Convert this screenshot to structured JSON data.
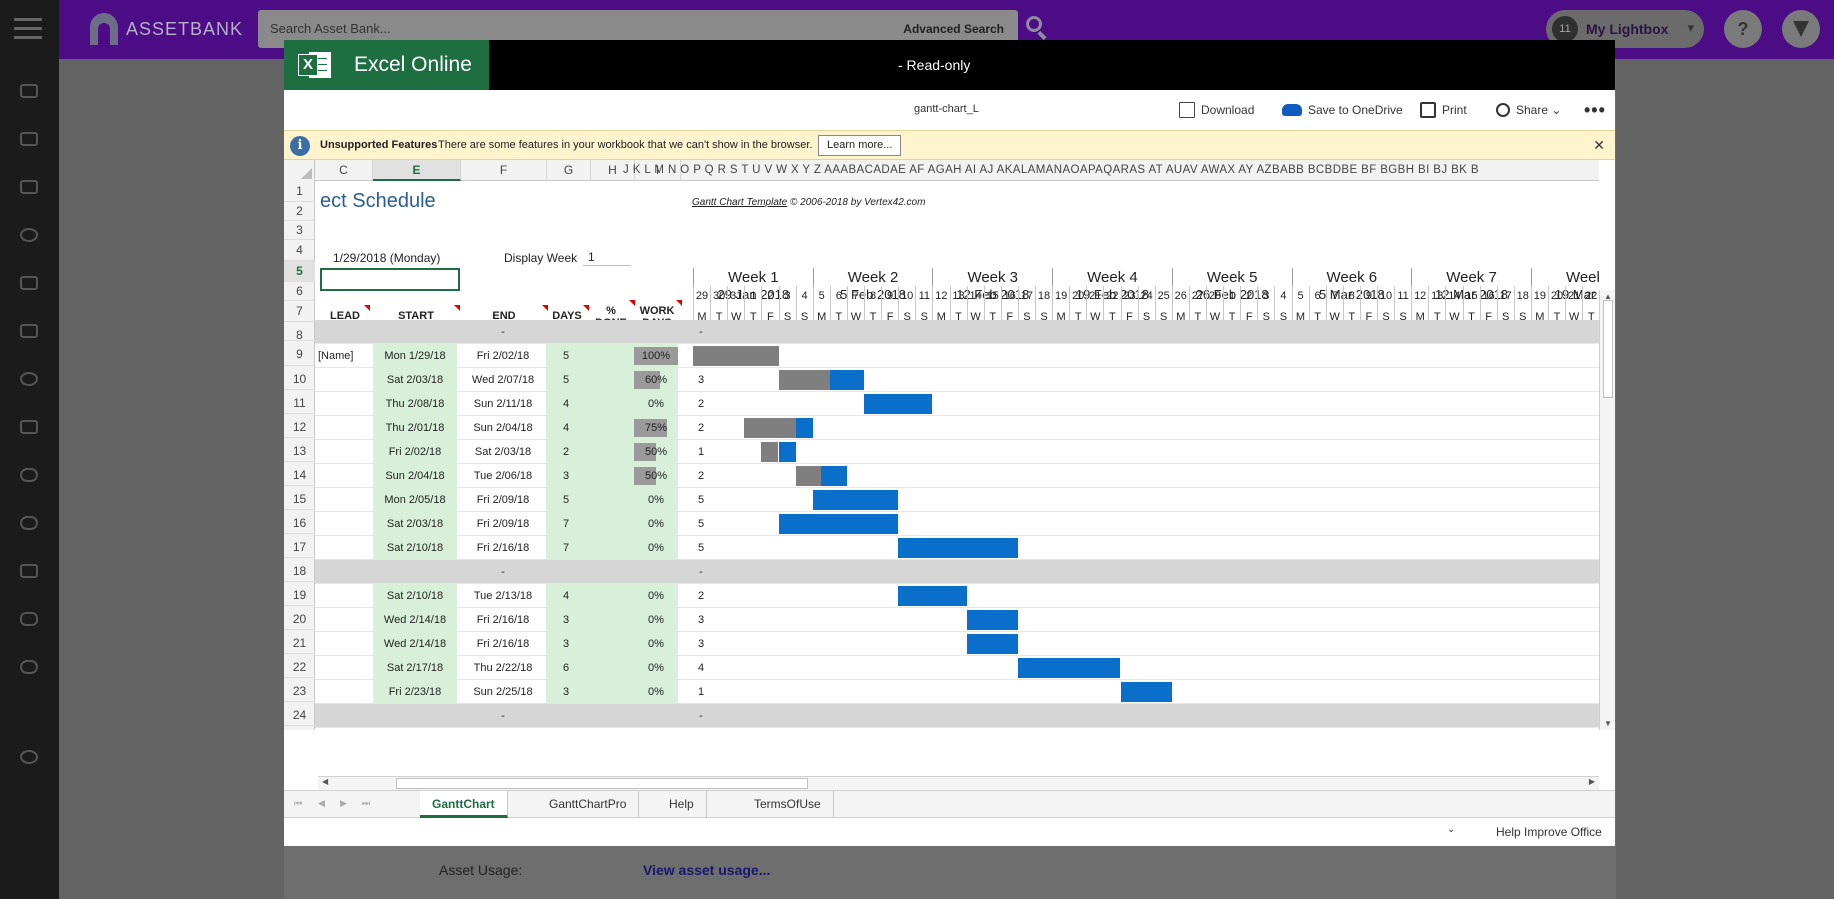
{
  "app": {
    "logo_text": "ASSETBANK",
    "search_placeholder": "Search Asset Bank...",
    "advanced_search": "Advanced Search",
    "lightbox_count": "11",
    "lightbox_label": "My Lightbox",
    "help_icon": "?",
    "sidebar_icons": [
      "home-icon",
      "assets-icon",
      "list-icon",
      "search-icon",
      "folder-icon",
      "star-icon",
      "check-icon",
      "edit-icon",
      "upload-icon",
      "cloud-icon",
      "wrench-icon",
      "chat-icon",
      "link-icon",
      "settings-icon"
    ],
    "asset_usage_label": "Asset Usage:",
    "asset_usage_link": "View asset usage..."
  },
  "excel": {
    "brand": "Excel Online",
    "status": "-   Read-only",
    "file_name": "gantt-chart_L",
    "toolbar": {
      "download": "Download",
      "save_onedrive": "Save to OneDrive",
      "print": "Print",
      "share": "Share ⌄",
      "more": "•••"
    },
    "info_bar": {
      "title": "Unsupported Features",
      "message": "There are some features in your workbook that we can't show in the browser.",
      "learn_more": "Learn more...",
      "close": "✕"
    },
    "colors": {
      "brand_green": "#1d6f42",
      "bar_blue": "#0a6fcb",
      "bar_gray": "#7f7f7f",
      "start_green": "#d8f0d9"
    }
  },
  "sheet": {
    "col_headers": [
      "C",
      "E",
      "F",
      "G",
      "H",
      "I"
    ],
    "letter_strip": "J  K  L  M  N  O  P  Q  R  S  T  U  V  W  X  Y  Z  AAABACADAE AF AGAH AI  AJ AKALAMANAOAPAQARAS AT AUAV AWAX AY AZBABB BCBDBE BF BGBH BI  BJ BK B",
    "title": "ect Schedule",
    "copyright_link": "Gantt Chart Template",
    "copyright_rest": " © 2006-2018 by Vertex42.com",
    "start_date": "1/29/2018 (Monday)",
    "display_week_label": "Display Week",
    "display_week_value": "1",
    "headers": {
      "lead": "LEAD",
      "start": "START",
      "end": "END",
      "days": "DAYS",
      "pct_1": "%",
      "pct_2": "DONE",
      "work_1": "WORK",
      "work_2": "DAYS"
    },
    "row_numbers": [
      "1",
      "2",
      "3",
      "4",
      "5",
      "6",
      "7",
      "8",
      "9",
      "10",
      "11",
      "12",
      "13",
      "14",
      "15",
      "16",
      "17",
      "18",
      "19",
      "20",
      "21",
      "22",
      "23",
      "24"
    ],
    "weeks": [
      {
        "name": "Week 1",
        "date": "29 Jan 2018",
        "days": [
          "29",
          "30",
          "31",
          "1",
          "2",
          "3",
          "4"
        ]
      },
      {
        "name": "Week 2",
        "date": "5 Feb 2018",
        "days": [
          "5",
          "6",
          "7",
          "8",
          "9",
          "10",
          "11"
        ]
      },
      {
        "name": "Week 3",
        "date": "12 Feb 2018",
        "days": [
          "12",
          "13",
          "14",
          "15",
          "16",
          "17",
          "18"
        ]
      },
      {
        "name": "Week 4",
        "date": "19 Feb 2018",
        "days": [
          "19",
          "20",
          "21",
          "22",
          "23",
          "24",
          "25"
        ]
      },
      {
        "name": "Week 5",
        "date": "26 Feb 2018",
        "days": [
          "26",
          "27",
          "28",
          "1",
          "2",
          "3",
          "4"
        ]
      },
      {
        "name": "Week 6",
        "date": "5 Mar 2018",
        "days": [
          "5",
          "6",
          "7",
          "8",
          "9",
          "10",
          "11"
        ]
      },
      {
        "name": "Week 7",
        "date": "12 Mar 2018",
        "days": [
          "12",
          "13",
          "14",
          "15",
          "16",
          "17",
          "18"
        ]
      },
      {
        "name": "Week 8",
        "date": "19 Mar 2018",
        "days": [
          "19",
          "20",
          "21",
          "22",
          "23",
          "24",
          "25"
        ]
      }
    ],
    "dow": [
      "M",
      "T",
      "W",
      "T",
      "F",
      "S",
      "S"
    ],
    "rows": [
      {
        "row": "8",
        "phase": true,
        "end": "-",
        "work": "-"
      },
      {
        "row": "9",
        "lead": "[Name]",
        "start": "Mon 1/29/18",
        "end": "Fri 2/02/18",
        "days": "5",
        "pct": "100%",
        "pct_value": 100,
        "work": "5",
        "bar_start_day": 0,
        "bar_days": 5
      },
      {
        "row": "10",
        "start": "Sat 2/03/18",
        "end": "Wed 2/07/18",
        "days": "5",
        "pct": "60%",
        "pct_value": 60,
        "work": "3",
        "bar_start_day": 5,
        "bar_days": 5
      },
      {
        "row": "11",
        "start": "Thu 2/08/18",
        "end": "Sun 2/11/18",
        "days": "4",
        "pct": "0%",
        "pct_value": 0,
        "work": "2",
        "bar_start_day": 10,
        "bar_days": 4
      },
      {
        "row": "12",
        "start": "Thu 2/01/18",
        "end": "Sun 2/04/18",
        "days": "4",
        "pct": "75%",
        "pct_value": 75,
        "work": "2",
        "bar_start_day": 3,
        "bar_days": 4
      },
      {
        "row": "13",
        "start": "Fri 2/02/18",
        "end": "Sat 2/03/18",
        "days": "2",
        "pct": "50%",
        "pct_value": 50,
        "work": "1",
        "bar_start_day": 4,
        "bar_days": 2
      },
      {
        "row": "14",
        "start": "Sun 2/04/18",
        "end": "Tue 2/06/18",
        "days": "3",
        "pct": "50%",
        "pct_value": 50,
        "work": "2",
        "bar_start_day": 6,
        "bar_days": 3
      },
      {
        "row": "15",
        "start": "Mon 2/05/18",
        "end": "Fri 2/09/18",
        "days": "5",
        "pct": "0%",
        "pct_value": 0,
        "work": "5",
        "bar_start_day": 7,
        "bar_days": 5
      },
      {
        "row": "16",
        "start": "Sat 2/03/18",
        "end": "Fri 2/09/18",
        "days": "7",
        "pct": "0%",
        "pct_value": 0,
        "work": "5",
        "bar_start_day": 5,
        "bar_days": 7
      },
      {
        "row": "17",
        "start": "Sat 2/10/18",
        "end": "Fri 2/16/18",
        "days": "7",
        "pct": "0%",
        "pct_value": 0,
        "work": "5",
        "bar_start_day": 12,
        "bar_days": 7
      },
      {
        "row": "18",
        "phase": true,
        "end": "-",
        "work": "-"
      },
      {
        "row": "19",
        "start": "Sat 2/10/18",
        "end": "Tue 2/13/18",
        "days": "4",
        "pct": "0%",
        "pct_value": 0,
        "work": "2",
        "bar_start_day": 12,
        "bar_days": 4
      },
      {
        "row": "20",
        "start": "Wed 2/14/18",
        "end": "Fri 2/16/18",
        "days": "3",
        "pct": "0%",
        "pct_value": 0,
        "work": "3",
        "bar_start_day": 16,
        "bar_days": 3
      },
      {
        "row": "21",
        "start": "Wed 2/14/18",
        "end": "Fri 2/16/18",
        "days": "3",
        "pct": "0%",
        "pct_value": 0,
        "work": "3",
        "bar_start_day": 16,
        "bar_days": 3
      },
      {
        "row": "22",
        "start": "Sat 2/17/18",
        "end": "Thu 2/22/18",
        "days": "6",
        "pct": "0%",
        "pct_value": 0,
        "work": "4",
        "bar_start_day": 19,
        "bar_days": 6
      },
      {
        "row": "23",
        "start": "Fri 2/23/18",
        "end": "Sun 2/25/18",
        "days": "3",
        "pct": "0%",
        "pct_value": 0,
        "work": "1",
        "bar_start_day": 25,
        "bar_days": 3
      },
      {
        "row": "24",
        "phase": true,
        "end": "-",
        "work": "-"
      }
    ],
    "tabs": [
      "GanttChart",
      "GanttChartPro",
      "Help",
      "TermsOfUse"
    ],
    "active_tab": "GanttChart",
    "status_chevron": "⌄",
    "help_improve": "Help Improve Office"
  }
}
